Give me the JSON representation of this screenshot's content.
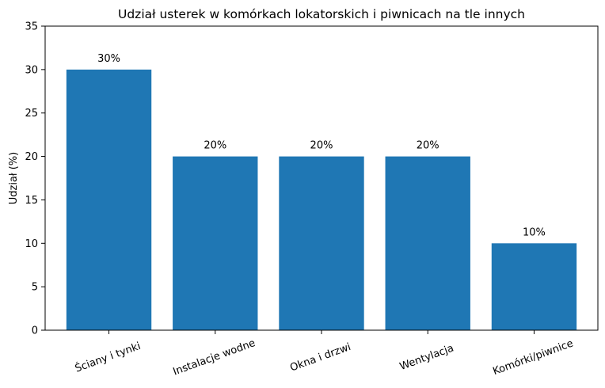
{
  "chart_data": {
    "type": "bar",
    "title": "Udział usterek w komórkach lokatorskich i piwnicach na tle innych",
    "xlabel": "",
    "ylabel": "Udział (%)",
    "categories": [
      "Ściany i tynki",
      "Instalacje wodne",
      "Okna i drzwi",
      "Wentylacja",
      "Komórki/piwnice"
    ],
    "values": [
      30,
      20,
      20,
      20,
      10
    ],
    "data_labels": [
      "30%",
      "20%",
      "20%",
      "20%",
      "10%"
    ],
    "ylim": [
      0,
      35
    ],
    "yticks": [
      0,
      5,
      10,
      15,
      20,
      25,
      30,
      35
    ],
    "bar_color": "#1f77b4",
    "grid": false,
    "legend": "none"
  }
}
